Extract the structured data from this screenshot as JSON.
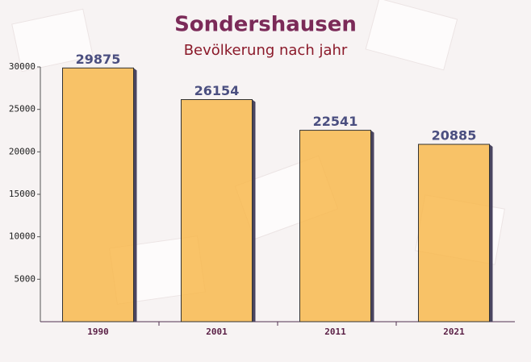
{
  "chart_data": {
    "type": "bar",
    "title": "Sondershausen",
    "subtitle": "Bevölkerung nach jahr",
    "categories": [
      "1990",
      "2001",
      "2011",
      "2021"
    ],
    "values": [
      29875,
      26154,
      22541,
      20885
    ],
    "color": "#f8b84e",
    "ylim": [
      0,
      30000
    ],
    "yticks": [
      5000,
      10000,
      15000,
      20000,
      25000,
      30000
    ],
    "grid": false
  }
}
